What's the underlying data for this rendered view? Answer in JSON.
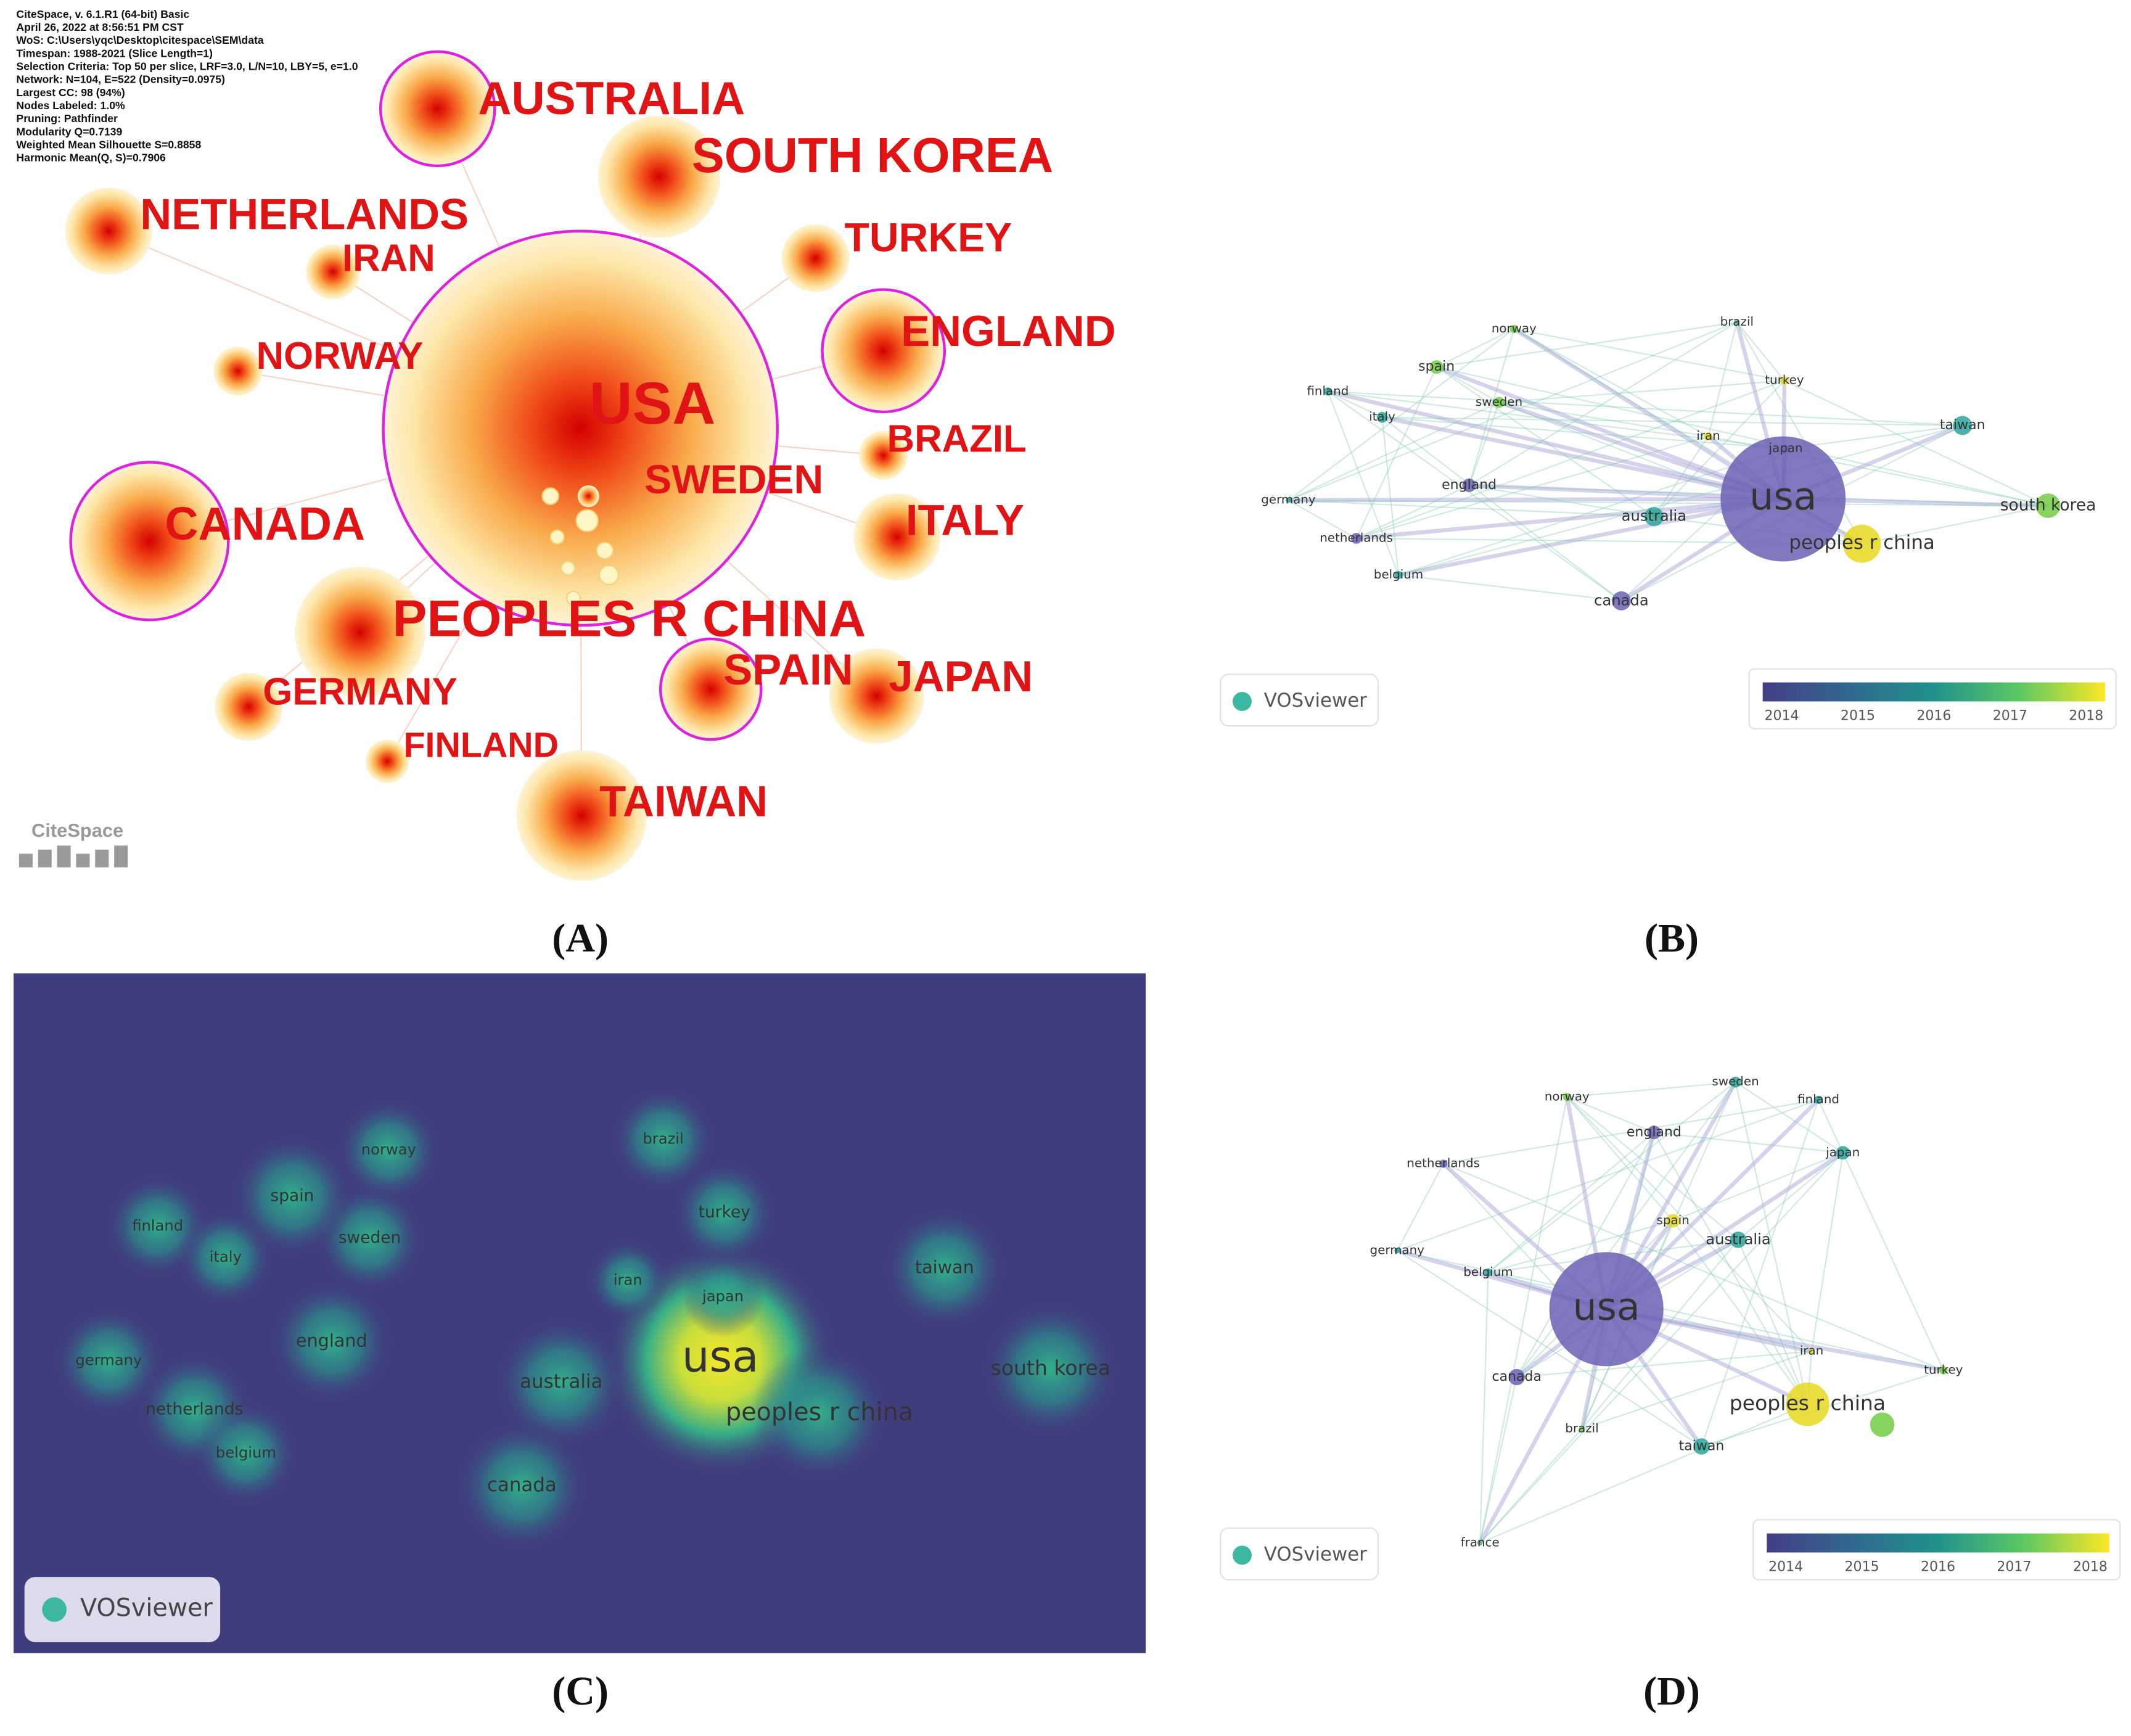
{
  "panels": [
    {
      "label": "(A)",
      "info": [
        "CiteSpace, v. 6.1.R1 (64-bit) Basic",
        "April 26, 2022 at 8:56:51 PM CST",
        "WoS: C:\\Users\\yqc\\Desktop\\citespace\\SEM\\data",
        "Timespan: 1988-2021 (Slice Length=1)",
        "Selection Criteria: Top 50 per slice, LRF=3.0, L/N=10, LBY=5, e=1.0",
        "Network: N=104, E=522 (Density=0.0975)",
        "Largest CC: 98 (94%)",
        "Nodes Labeled: 1.0%",
        "Pruning: Pathfinder",
        "Modularity Q=0.7139",
        "Weighted Mean Silhouette S=0.8858",
        "Harmonic Mean(Q, S)=0.7906"
      ],
      "logo": "CiteSpace",
      "nodes": [
        {
          "label": "USA"
        },
        {
          "label": "AUSTRALIA"
        },
        {
          "label": "SOUTH KOREA"
        },
        {
          "label": "NETHERLANDS"
        },
        {
          "label": "IRAN"
        },
        {
          "label": "TURKEY"
        },
        {
          "label": "ENGLAND"
        },
        {
          "label": "NORWAY"
        },
        {
          "label": "BRAZIL"
        },
        {
          "label": "SWEDEN"
        },
        {
          "label": "CANADA"
        },
        {
          "label": "ITALY"
        },
        {
          "label": "PEOPLES R CHINA"
        },
        {
          "label": "SPAIN"
        },
        {
          "label": "JAPAN"
        },
        {
          "label": "GERMANY"
        },
        {
          "label": "FINLAND"
        },
        {
          "label": "TAIWAN"
        }
      ]
    },
    {
      "label": "(B)",
      "logo": "VOSviewer",
      "nodes": [
        {
          "label": "usa"
        },
        {
          "label": "peoples r china"
        },
        {
          "label": "south korea"
        },
        {
          "label": "taiwan"
        },
        {
          "label": "turkey"
        },
        {
          "label": "brazil"
        },
        {
          "label": "japan"
        },
        {
          "label": "iran"
        },
        {
          "label": "australia"
        },
        {
          "label": "canada"
        },
        {
          "label": "england"
        },
        {
          "label": "sweden"
        },
        {
          "label": "italy"
        },
        {
          "label": "spain"
        },
        {
          "label": "norway"
        },
        {
          "label": "finland"
        },
        {
          "label": "germany"
        },
        {
          "label": "netherlands"
        },
        {
          "label": "belgium"
        }
      ],
      "colorbar_ticks": [
        "2014",
        "2015",
        "2016",
        "2017",
        "2018"
      ]
    },
    {
      "label": "(C)",
      "logo": "VOSviewer",
      "nodes": [
        {
          "label": "usa"
        },
        {
          "label": "peoples r china"
        },
        {
          "label": "south korea"
        },
        {
          "label": "taiwan"
        },
        {
          "label": "turkey"
        },
        {
          "label": "japan"
        },
        {
          "label": "iran"
        },
        {
          "label": "brazil"
        },
        {
          "label": "australia"
        },
        {
          "label": "canada"
        },
        {
          "label": "england"
        },
        {
          "label": "sweden"
        },
        {
          "label": "spain"
        },
        {
          "label": "norway"
        },
        {
          "label": "finland"
        },
        {
          "label": "italy"
        },
        {
          "label": "germany"
        },
        {
          "label": "netherlands"
        },
        {
          "label": "belgium"
        }
      ]
    },
    {
      "label": "(D)",
      "logo": "VOSviewer",
      "nodes": [
        {
          "label": "usa"
        },
        {
          "label": "peoples r china"
        },
        {
          "label": "australia"
        },
        {
          "label": "taiwan"
        },
        {
          "label": "canada"
        },
        {
          "label": "england"
        },
        {
          "label": "netherlands"
        },
        {
          "label": "norway"
        },
        {
          "label": "sweden"
        },
        {
          "label": "finland"
        },
        {
          "label": "japan"
        },
        {
          "label": "spain"
        },
        {
          "label": "germany"
        },
        {
          "label": "belgium"
        },
        {
          "label": "iran"
        },
        {
          "label": "turkey"
        },
        {
          "label": "brazil"
        },
        {
          "label": "france"
        }
      ],
      "colorbar_ticks": [
        "2014",
        "2015",
        "2016",
        "2017",
        "2018"
      ]
    }
  ]
}
